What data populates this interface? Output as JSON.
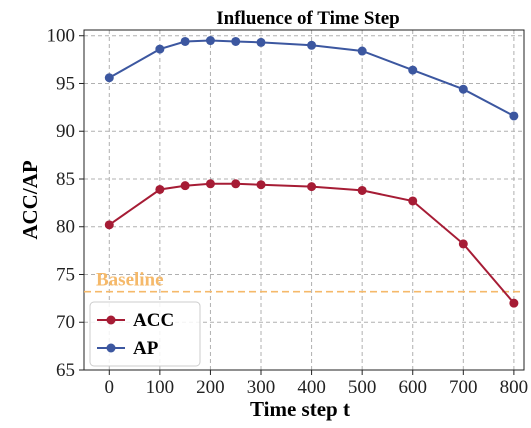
{
  "chart_data": {
    "type": "line",
    "title": "Influence of Time Step",
    "xlabel": "Time step t",
    "ylabel": "ACC/AP",
    "x": [
      0,
      100,
      150,
      200,
      250,
      300,
      400,
      500,
      600,
      700,
      800
    ],
    "xticks": [
      0,
      100,
      200,
      300,
      400,
      500,
      600,
      700,
      800
    ],
    "yticks": [
      65,
      70,
      75,
      80,
      85,
      90,
      95,
      100
    ],
    "xlim": [
      -50,
      820
    ],
    "ylim": [
      65,
      100.6
    ],
    "grid": true,
    "legend_position": "lower-left",
    "series": [
      {
        "name": "ACC",
        "color": "#a61c35",
        "values": [
          80.2,
          83.9,
          84.3,
          84.5,
          84.5,
          84.4,
          84.2,
          83.8,
          82.7,
          78.2,
          72.0
        ]
      },
      {
        "name": "AP",
        "color": "#3c57a0",
        "values": [
          95.6,
          98.6,
          99.4,
          99.5,
          99.4,
          99.3,
          99.0,
          98.4,
          96.4,
          94.4,
          91.6
        ]
      }
    ],
    "baseline": {
      "label": "Baseline",
      "value": 73.2,
      "color": "#f5b96a"
    }
  }
}
